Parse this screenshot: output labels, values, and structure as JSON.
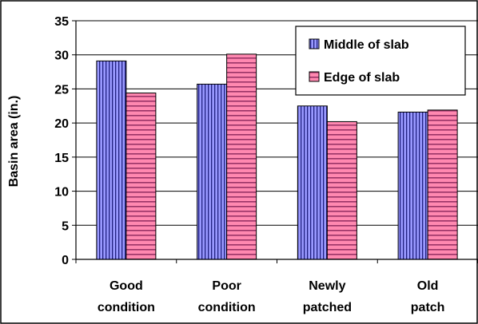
{
  "chart_data": {
    "type": "bar",
    "categories": [
      [
        "Good",
        "condition"
      ],
      [
        "Poor",
        "condition"
      ],
      [
        "Newly",
        "patched"
      ],
      [
        "Old",
        "patch"
      ]
    ],
    "series": [
      {
        "name": "Middle of slab",
        "values": [
          29.1,
          25.7,
          22.5,
          21.6
        ],
        "color": "#9999ff",
        "pattern": "vertical-stripes"
      },
      {
        "name": "Edge of slab",
        "values": [
          24.4,
          30.1,
          20.2,
          21.9
        ],
        "color": "#ff6699",
        "pattern": "horizontal-stripes"
      }
    ],
    "ylabel": "Basin area (in.)",
    "ylim": [
      0,
      35
    ],
    "yticks": [
      0,
      5,
      10,
      15,
      20,
      25,
      30,
      35
    ],
    "grid": true,
    "legend_position": "top-right"
  }
}
